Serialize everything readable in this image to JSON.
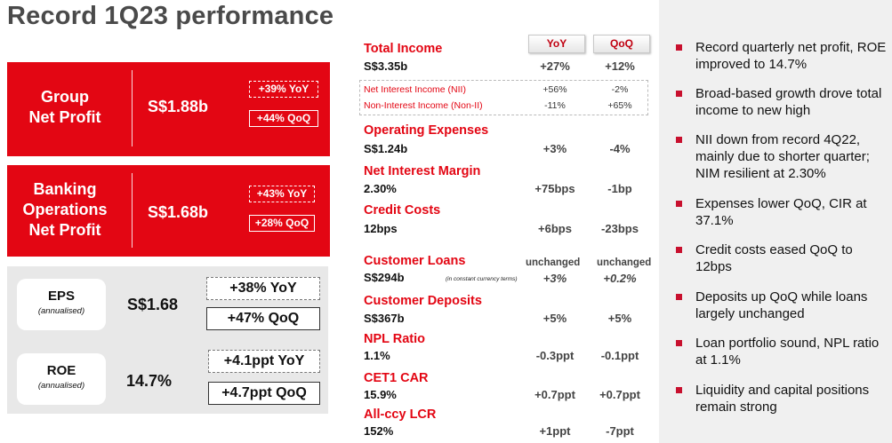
{
  "title": "Record 1Q23 performance",
  "left": {
    "group_net_profit": {
      "label_line1": "Group",
      "label_line2": "Net Profit",
      "value": "S$1.88b",
      "yoy": "+39% YoY",
      "qoq": "+44% QoQ"
    },
    "banking_ops": {
      "label_line1": "Banking",
      "label_line2": "Operations",
      "label_line3": "Net Profit",
      "value": "S$1.68b",
      "yoy": "+43% YoY",
      "qoq": "+28% QoQ"
    },
    "eps": {
      "label": "EPS",
      "sub": "(annualised)",
      "value": "S$1.68",
      "yoy": "+38% YoY",
      "qoq": "+47% QoQ"
    },
    "roe": {
      "label": "ROE",
      "sub": "(annualised)",
      "value": "14.7%",
      "yoy": "+4.1ppt YoY",
      "qoq": "+4.7ppt QoQ"
    }
  },
  "table": {
    "col_yoy": "YoY",
    "col_qoq": "QoQ",
    "rows": [
      {
        "name": "Total Income",
        "value": "S$3.35b",
        "yoy": "+27%",
        "qoq": "+12%"
      },
      {
        "name": "Operating Expenses",
        "value": "S$1.24b",
        "yoy": "+3%",
        "qoq": "-4%"
      },
      {
        "name": "Net Interest Margin",
        "value": "2.30%",
        "yoy": "+75bps",
        "qoq": "-1bp"
      },
      {
        "name": "Credit Costs",
        "value": "12bps",
        "yoy": "+6bps",
        "qoq": "-23bps"
      },
      {
        "name": "Customer Loans",
        "value": "S$294b",
        "yoy_cap": "unchanged",
        "qoq_cap": "unchanged",
        "yoy": "+3%",
        "qoq": "+0.2%",
        "note": "(in constant currency terms)"
      },
      {
        "name": "Customer Deposits",
        "value": "S$367b",
        "yoy": "+5%",
        "qoq": "+5%"
      },
      {
        "name": "NPL Ratio",
        "value": "1.1%",
        "yoy": "-0.3ppt",
        "qoq": "-0.1ppt"
      },
      {
        "name": "CET1 CAR",
        "value": "15.9%",
        "yoy": "+0.7ppt",
        "qoq": "+0.7ppt"
      },
      {
        "name": "All-ccy LCR",
        "value": "152%",
        "yoy": "+1ppt",
        "qoq": "-7ppt"
      }
    ],
    "sub_rows": [
      {
        "name": "Net Interest Income (NII)",
        "yoy": "+56%",
        "qoq": "-2%"
      },
      {
        "name": "Non-Interest Income (Non-II)",
        "yoy": "-11%",
        "qoq": "+65%"
      }
    ]
  },
  "bullets": [
    "Record quarterly net profit, ROE improved to 14.7%",
    "Broad-based growth drove total income to new high",
    "NII down from record 4Q22, mainly due to shorter quarter; NIM resilient at 2.30%",
    "Expenses lower QoQ, CIR at 37.1%",
    "Credit costs eased QoQ to 12bps",
    "Deposits up QoQ while loans largely unchanged",
    "Loan portfolio sound, NPL ratio at 1.1%",
    "Liquidity and capital positions remain strong"
  ],
  "colors": {
    "brand_red": "#e30613",
    "panel_grey": "#e8e8e8",
    "right_panel": "#f0f0f0"
  }
}
